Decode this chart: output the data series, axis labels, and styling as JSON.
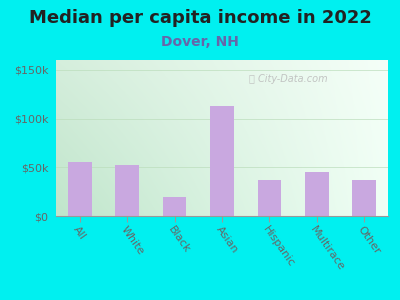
{
  "title": "Median per capita income in 2022",
  "subtitle": "Dover, NH",
  "categories": [
    "All",
    "White",
    "Black",
    "Asian",
    "Hispanic",
    "Multirace",
    "Other"
  ],
  "values": [
    55000,
    52000,
    20000,
    113000,
    37000,
    45000,
    37000
  ],
  "bar_color": "#c9a8e0",
  "background_outer": "#00f0f0",
  "title_color": "#222222",
  "subtitle_color": "#6666aa",
  "tick_color": "#666666",
  "ylim": [
    0,
    160000
  ],
  "yticks": [
    0,
    50000,
    100000,
    150000
  ],
  "ytick_labels": [
    "$0",
    "$50k",
    "$100k",
    "$150k"
  ],
  "watermark": "City-Data.com",
  "title_fontsize": 13,
  "subtitle_fontsize": 10,
  "label_fontsize": 8,
  "bar_width": 0.5,
  "gradient_left": "#c8ead0",
  "gradient_right": "#f5fff5"
}
